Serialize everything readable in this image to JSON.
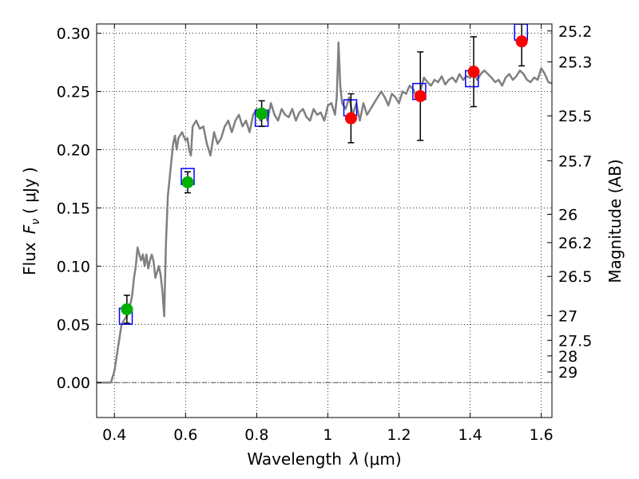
{
  "chart_data": {
    "type": "scatter",
    "title": "",
    "xlabel_text": "Wavelength",
    "xlabel_symbol": "λ",
    "xlabel_unit": "(μm)",
    "ylabel_text": "Flux",
    "ylabel_symbol": "F",
    "ylabel_subscript": "ν",
    "ylabel_unit": "( μJy )",
    "y2label": "Magnitude (AB)",
    "xlim": [
      0.35,
      1.63
    ],
    "ylim": [
      -0.03,
      0.308
    ],
    "grid": true,
    "xticks": [
      {
        "value": 0.4,
        "label": "0.4"
      },
      {
        "value": 0.6,
        "label": "0.6"
      },
      {
        "value": 0.8,
        "label": "0.8"
      },
      {
        "value": 1.0,
        "label": "1"
      },
      {
        "value": 1.2,
        "label": "1.2"
      },
      {
        "value": 1.4,
        "label": "1.4"
      },
      {
        "value": 1.6,
        "label": "1.6"
      }
    ],
    "yticks": [
      {
        "value": 0.0,
        "label": "0.00"
      },
      {
        "value": 0.05,
        "label": "0.05"
      },
      {
        "value": 0.1,
        "label": "0.10"
      },
      {
        "value": 0.15,
        "label": "0.15"
      },
      {
        "value": 0.2,
        "label": "0.20"
      },
      {
        "value": 0.25,
        "label": "0.25"
      },
      {
        "value": 0.3,
        "label": "0.30"
      }
    ],
    "mag_ticks": [
      {
        "mag": 25.2,
        "label": "25.2"
      },
      {
        "mag": 25.3,
        "label": "25.3"
      },
      {
        "mag": 25.5,
        "label": "25.5"
      },
      {
        "mag": 25.7,
        "label": "25.7"
      },
      {
        "mag": 26.0,
        "label": "26"
      },
      {
        "mag": 26.2,
        "label": "26.2"
      },
      {
        "mag": 26.5,
        "label": "26.5"
      },
      {
        "mag": 27.0,
        "label": "27"
      },
      {
        "mag": 27.5,
        "label": "27.5"
      },
      {
        "mag": 28.0,
        "label": "28"
      },
      {
        "mag": 29.0,
        "label": "29"
      }
    ],
    "colors": {
      "model": "#808080",
      "model_photometry": "#0000ff",
      "optical": "#00b000",
      "nir": "#ff0000",
      "errorbar": "#000000"
    },
    "series": [
      {
        "key": "optical",
        "points": [
          {
            "x": 0.435,
            "y": 0.063,
            "err": 0.012
          },
          {
            "x": 0.606,
            "y": 0.172,
            "err": 0.009
          },
          {
            "x": 0.814,
            "y": 0.231,
            "err": 0.011
          }
        ]
      },
      {
        "key": "nir",
        "points": [
          {
            "x": 1.065,
            "y": 0.227,
            "err": 0.021
          },
          {
            "x": 1.26,
            "y": 0.246,
            "err": 0.038
          },
          {
            "x": 1.41,
            "y": 0.267,
            "err": 0.03
          },
          {
            "x": 1.545,
            "y": 0.293,
            "err": 0.021
          }
        ]
      }
    ],
    "model_photometry": [
      {
        "x": 0.432,
        "y": 0.057
      },
      {
        "x": 0.606,
        "y": 0.177
      },
      {
        "x": 0.814,
        "y": 0.227
      },
      {
        "x": 1.063,
        "y": 0.236
      },
      {
        "x": 1.257,
        "y": 0.25
      },
      {
        "x": 1.405,
        "y": 0.261
      },
      {
        "x": 1.543,
        "y": 0.301
      }
    ],
    "model_spectrum": {
      "x": [
        0.35,
        0.39,
        0.4,
        0.41,
        0.42,
        0.43,
        0.44,
        0.45,
        0.455,
        0.46,
        0.465,
        0.47,
        0.475,
        0.48,
        0.485,
        0.49,
        0.495,
        0.5,
        0.505,
        0.51,
        0.515,
        0.52,
        0.525,
        0.53,
        0.535,
        0.54,
        0.545,
        0.55,
        0.56,
        0.565,
        0.57,
        0.575,
        0.58,
        0.59,
        0.6,
        0.605,
        0.61,
        0.615,
        0.62,
        0.63,
        0.64,
        0.65,
        0.66,
        0.67,
        0.68,
        0.69,
        0.7,
        0.71,
        0.72,
        0.73,
        0.74,
        0.75,
        0.76,
        0.77,
        0.78,
        0.79,
        0.8,
        0.81,
        0.82,
        0.83,
        0.84,
        0.85,
        0.86,
        0.87,
        0.88,
        0.89,
        0.9,
        0.91,
        0.92,
        0.93,
        0.94,
        0.95,
        0.96,
        0.97,
        0.98,
        0.99,
        1.0,
        1.01,
        1.02,
        1.025,
        1.03,
        1.035,
        1.04,
        1.05,
        1.06,
        1.07,
        1.08,
        1.09,
        1.1,
        1.11,
        1.12,
        1.13,
        1.14,
        1.15,
        1.16,
        1.17,
        1.18,
        1.19,
        1.2,
        1.21,
        1.22,
        1.23,
        1.24,
        1.25,
        1.26,
        1.27,
        1.28,
        1.29,
        1.3,
        1.31,
        1.32,
        1.33,
        1.34,
        1.35,
        1.36,
        1.37,
        1.38,
        1.39,
        1.4,
        1.41,
        1.42,
        1.43,
        1.44,
        1.45,
        1.46,
        1.47,
        1.48,
        1.49,
        1.5,
        1.51,
        1.52,
        1.53,
        1.54,
        1.55,
        1.56,
        1.57,
        1.58,
        1.59,
        1.6,
        1.61,
        1.62,
        1.63
      ],
      "y": [
        0.0,
        0.0,
        0.01,
        0.03,
        0.05,
        0.055,
        0.06,
        0.075,
        0.09,
        0.1,
        0.116,
        0.11,
        0.105,
        0.11,
        0.1,
        0.11,
        0.098,
        0.105,
        0.11,
        0.104,
        0.09,
        0.095,
        0.1,
        0.092,
        0.078,
        0.057,
        0.12,
        0.16,
        0.19,
        0.205,
        0.212,
        0.2,
        0.21,
        0.215,
        0.208,
        0.21,
        0.2,
        0.195,
        0.22,
        0.225,
        0.218,
        0.22,
        0.205,
        0.195,
        0.215,
        0.205,
        0.21,
        0.22,
        0.225,
        0.215,
        0.225,
        0.23,
        0.22,
        0.225,
        0.215,
        0.23,
        0.235,
        0.225,
        0.235,
        0.225,
        0.24,
        0.23,
        0.225,
        0.235,
        0.23,
        0.228,
        0.235,
        0.225,
        0.232,
        0.235,
        0.228,
        0.225,
        0.235,
        0.23,
        0.232,
        0.225,
        0.238,
        0.24,
        0.23,
        0.245,
        0.292,
        0.255,
        0.24,
        0.235,
        0.245,
        0.23,
        0.24,
        0.225,
        0.24,
        0.23,
        0.235,
        0.24,
        0.245,
        0.25,
        0.245,
        0.238,
        0.248,
        0.245,
        0.24,
        0.25,
        0.248,
        0.255,
        0.252,
        0.245,
        0.25,
        0.262,
        0.258,
        0.255,
        0.26,
        0.258,
        0.263,
        0.256,
        0.26,
        0.262,
        0.258,
        0.265,
        0.26,
        0.263,
        0.262,
        0.265,
        0.26,
        0.265,
        0.268,
        0.265,
        0.262,
        0.258,
        0.26,
        0.255,
        0.262,
        0.265,
        0.26,
        0.263,
        0.268,
        0.265,
        0.26,
        0.258,
        0.262,
        0.26,
        0.27,
        0.265,
        0.258,
        0.257
      ]
    }
  }
}
